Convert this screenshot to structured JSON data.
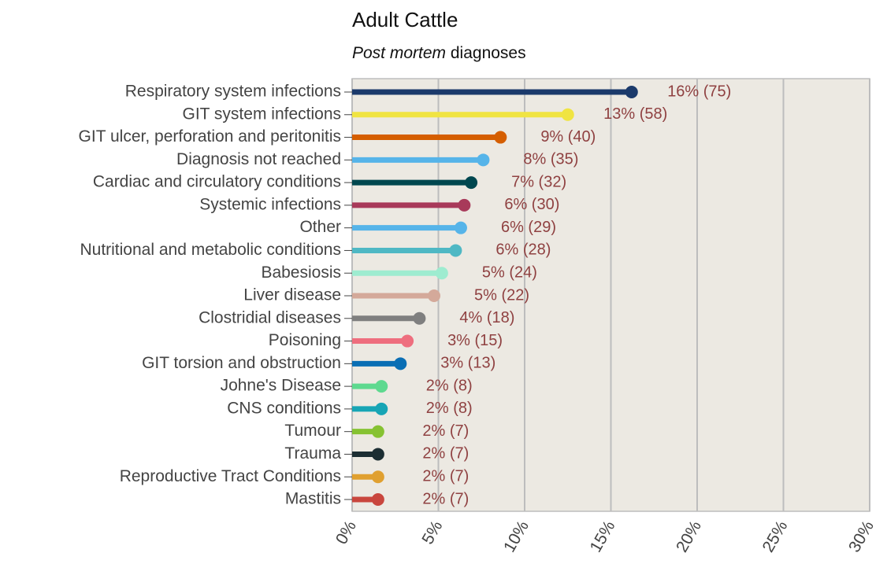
{
  "chart_data": {
    "type": "lollipop",
    "title": "Adult Cattle",
    "subtitle": {
      "italic": "Post mortem",
      "plain": "diagnoses"
    },
    "categories": [
      "Respiratory system infections",
      "GIT system infections",
      "GIT ulcer, perforation and peritonitis",
      "Diagnosis not reached",
      "Cardiac and circulatory conditions",
      "Systemic infections",
      "Other",
      "Nutritional and metabolic conditions",
      "Babesiosis",
      "Liver disease",
      "Clostridial diseases",
      "Poisoning",
      "GIT torsion and obstruction",
      "Johne's Disease",
      "CNS conditions",
      "Tumour",
      "Trauma",
      "Reproductive Tract Conditions",
      "Mastitis"
    ],
    "values": [
      16.2,
      12.5,
      8.6,
      7.6,
      6.9,
      6.5,
      6.3,
      6.0,
      5.2,
      4.75,
      3.9,
      3.2,
      2.8,
      1.7,
      1.7,
      1.5,
      1.5,
      1.5,
      1.5
    ],
    "value_labels": [
      "16% (75)",
      "13% (58)",
      "9% (40)",
      "8% (35)",
      "7% (32)",
      "6% (30)",
      "6% (29)",
      "6% (28)",
      "5% (24)",
      "5% (22)",
      "4% (18)",
      "3% (15)",
      "3% (13)",
      "2% (8)",
      "2% (8)",
      "2% (7)",
      "2% (7)",
      "2% (7)",
      "2% (7)"
    ],
    "colors": [
      "#1b3a6b",
      "#f0e442",
      "#d55e00",
      "#56b4e9",
      "#00474f",
      "#a83a5a",
      "#56b4e9",
      "#4fb8c4",
      "#9eecd0",
      "#d4a99a",
      "#7f7f7f",
      "#ee6e7e",
      "#0a6eb4",
      "#5ed98f",
      "#17a5b5",
      "#86c232",
      "#1c2e33",
      "#e0a030",
      "#c9463d"
    ],
    "xlim": [
      0,
      30
    ],
    "xticks": [
      {
        "value": 0,
        "label": "0%"
      },
      {
        "value": 5,
        "label": "5%"
      },
      {
        "value": 10,
        "label": "10%"
      },
      {
        "value": 15,
        "label": "15%"
      },
      {
        "value": 20,
        "label": "20%"
      },
      {
        "value": 25,
        "label": "25%"
      },
      {
        "value": 30,
        "label": "30%"
      }
    ],
    "grid": true
  }
}
